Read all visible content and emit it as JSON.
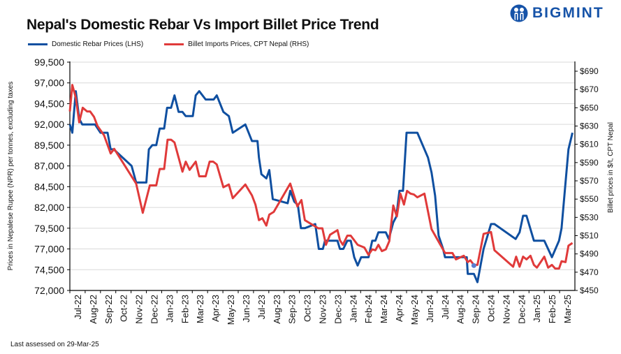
{
  "title": "Nepal's Domestic Rebar Vs Import Billet Price Trend",
  "brand": "BIGMINT",
  "footer": "Last assessed on 29-Mar-25",
  "colors": {
    "domestic": "#0f4fa0",
    "imports": "#e03a3a",
    "grid": "#d9d9d9",
    "brand": "#1653a8",
    "marker": "#5b7fd1"
  },
  "chart_data": {
    "type": "line",
    "title": "Nepal's Domestic Rebar Vs Import Billet Price Trend",
    "ylabel": "Prices in Nepalese Rupee (NPR) per tonnes, excluding taxes",
    "y2label": "Billet prices in $/t, CPT Nepal",
    "ylim": [
      72000,
      99500
    ],
    "y2lim": [
      450,
      690
    ],
    "yticks": [
      "72,000",
      "74,500",
      "77,000",
      "79,500",
      "82,000",
      "84,500",
      "87,000",
      "89,500",
      "92,000",
      "94,500",
      "97,000",
      "99,500"
    ],
    "y2ticks": [
      "$450",
      "$470",
      "$490",
      "$510",
      "$530",
      "$550",
      "$570",
      "$590",
      "$610",
      "$630",
      "$650",
      "$670",
      "$690"
    ],
    "xticks": [
      "Jul-22",
      "Aug-22",
      "Sep-22",
      "Oct-22",
      "Nov-22",
      "Dec-22",
      "Jan-23",
      "Feb-23",
      "Mar-23",
      "Apr-23",
      "May-23",
      "Jun-23",
      "Jul-23",
      "Aug-23",
      "Sep-23",
      "Oct-23",
      "Nov-23",
      "Dec-23",
      "Jan-24",
      "Feb-24",
      "Mar-24",
      "Apr-24",
      "May-24",
      "Jun-24",
      "Jul-24",
      "Aug-24",
      "Sep-24",
      "Oct-24",
      "Nov-24",
      "Dec-24",
      "Jan-25",
      "Feb-25",
      "Mar-25"
    ],
    "grid": true,
    "legend": "top-left",
    "series": [
      {
        "name": "Domestic Rebar Prices (LHS)",
        "axis": "left",
        "points": [
          [
            "2022-07-01",
            92000
          ],
          [
            "2022-07-06",
            91000
          ],
          [
            "2022-07-13",
            96000
          ],
          [
            "2022-07-20",
            92700
          ],
          [
            "2022-07-26",
            92000
          ],
          [
            "2022-08-21",
            92000
          ],
          [
            "2022-09-01",
            91000
          ],
          [
            "2022-09-15",
            91000
          ],
          [
            "2022-09-21",
            89000
          ],
          [
            "2022-09-27",
            89000
          ],
          [
            "2022-11-02",
            87000
          ],
          [
            "2022-11-11",
            85000
          ],
          [
            "2022-12-01",
            85000
          ],
          [
            "2022-12-06",
            89000
          ],
          [
            "2022-12-13",
            89500
          ],
          [
            "2022-12-21",
            89500
          ],
          [
            "2022-12-28",
            91500
          ],
          [
            "2023-01-06",
            91500
          ],
          [
            "2023-01-12",
            94000
          ],
          [
            "2023-01-20",
            94000
          ],
          [
            "2023-01-27",
            95500
          ],
          [
            "2023-02-04",
            93500
          ],
          [
            "2023-02-11",
            93500
          ],
          [
            "2023-02-17",
            93000
          ],
          [
            "2023-03-02",
            93000
          ],
          [
            "2023-03-08",
            95500
          ],
          [
            "2023-03-15",
            96000
          ],
          [
            "2023-03-28",
            95000
          ],
          [
            "2023-04-13",
            95000
          ],
          [
            "2023-04-19",
            95500
          ],
          [
            "2023-05-02",
            93500
          ],
          [
            "2023-05-13",
            93000
          ],
          [
            "2023-05-21",
            91000
          ],
          [
            "2023-06-15",
            92000
          ],
          [
            "2023-06-28",
            90000
          ],
          [
            "2023-07-09",
            90000
          ],
          [
            "2023-07-12",
            88000
          ],
          [
            "2023-07-17",
            86000
          ],
          [
            "2023-07-27",
            85500
          ],
          [
            "2023-08-02",
            86500
          ],
          [
            "2023-08-09",
            83000
          ],
          [
            "2023-09-08",
            82500
          ],
          [
            "2023-09-13",
            84000
          ],
          [
            "2023-09-21",
            82700
          ],
          [
            "2023-09-28",
            82300
          ],
          [
            "2023-10-04",
            79500
          ],
          [
            "2023-10-12",
            79500
          ],
          [
            "2023-11-02",
            80000
          ],
          [
            "2023-11-09",
            77000
          ],
          [
            "2023-11-17",
            77000
          ],
          [
            "2023-11-21",
            78000
          ],
          [
            "2023-12-16",
            78000
          ],
          [
            "2023-12-21",
            77000
          ],
          [
            "2023-12-28",
            77000
          ],
          [
            "2024-01-05",
            78000
          ],
          [
            "2024-01-12",
            78000
          ],
          [
            "2024-01-19",
            76000
          ],
          [
            "2024-01-26",
            75000
          ],
          [
            "2024-02-02",
            76000
          ],
          [
            "2024-02-16",
            76000
          ],
          [
            "2024-02-23",
            78000
          ],
          [
            "2024-02-29",
            78000
          ],
          [
            "2024-03-06",
            79000
          ],
          [
            "2024-03-21",
            79000
          ],
          [
            "2024-03-27",
            78200
          ],
          [
            "2024-04-05",
            80200
          ],
          [
            "2024-04-11",
            80900
          ],
          [
            "2024-04-17",
            84000
          ],
          [
            "2024-04-24",
            84000
          ],
          [
            "2024-05-01",
            91000
          ],
          [
            "2024-05-23",
            91000
          ],
          [
            "2024-06-13",
            88000
          ],
          [
            "2024-06-20",
            86200
          ],
          [
            "2024-06-27",
            83400
          ],
          [
            "2024-07-04",
            78600
          ],
          [
            "2024-07-13",
            77000
          ],
          [
            "2024-07-17",
            76000
          ],
          [
            "2024-08-30",
            76000
          ],
          [
            "2024-09-01",
            74000
          ],
          [
            "2024-09-13",
            74000
          ],
          [
            "2024-09-20",
            73000
          ],
          [
            "2024-10-02",
            77000
          ],
          [
            "2024-10-17",
            80000
          ],
          [
            "2024-10-24",
            80000
          ],
          [
            "2024-12-05",
            78200
          ],
          [
            "2024-12-13",
            79000
          ],
          [
            "2024-12-20",
            81000
          ],
          [
            "2024-12-27",
            81000
          ],
          [
            "2025-01-11",
            78000
          ],
          [
            "2025-02-01",
            78000
          ],
          [
            "2025-02-15",
            76000
          ],
          [
            "2025-02-28",
            78000
          ],
          [
            "2025-03-05",
            79500
          ],
          [
            "2025-03-13",
            85000
          ],
          [
            "2025-03-19",
            89000
          ],
          [
            "2025-03-27",
            91000
          ]
        ]
      },
      {
        "name": "Billet Imports Prices, CPT Nepal (RHS)",
        "axis": "right",
        "points": [
          [
            "2022-07-01",
            646
          ],
          [
            "2022-07-06",
            675
          ],
          [
            "2022-07-13",
            661
          ],
          [
            "2022-07-20",
            634
          ],
          [
            "2022-07-27",
            650
          ],
          [
            "2022-08-05",
            646
          ],
          [
            "2022-08-11",
            646
          ],
          [
            "2022-08-19",
            640
          ],
          [
            "2022-08-26",
            630
          ],
          [
            "2022-09-08",
            620
          ],
          [
            "2022-09-21",
            600
          ],
          [
            "2022-09-28",
            605
          ],
          [
            "2022-11-11",
            567
          ],
          [
            "2022-11-24",
            535
          ],
          [
            "2022-12-08",
            565
          ],
          [
            "2022-12-21",
            565
          ],
          [
            "2022-12-28",
            583
          ],
          [
            "2023-01-06",
            583
          ],
          [
            "2023-01-13",
            615
          ],
          [
            "2023-01-20",
            615
          ],
          [
            "2023-01-27",
            612
          ],
          [
            "2023-02-11",
            580
          ],
          [
            "2023-02-17",
            591
          ],
          [
            "2023-02-24",
            582
          ],
          [
            "2023-03-08",
            591
          ],
          [
            "2023-03-15",
            575
          ],
          [
            "2023-03-28",
            575
          ],
          [
            "2023-04-05",
            591
          ],
          [
            "2023-04-12",
            591
          ],
          [
            "2023-04-19",
            588
          ],
          [
            "2023-05-02",
            563
          ],
          [
            "2023-05-13",
            566
          ],
          [
            "2023-05-21",
            551
          ],
          [
            "2023-06-15",
            566
          ],
          [
            "2023-06-28",
            554
          ],
          [
            "2023-07-05",
            544
          ],
          [
            "2023-07-12",
            527
          ],
          [
            "2023-07-19",
            529
          ],
          [
            "2023-07-27",
            521
          ],
          [
            "2023-08-02",
            533
          ],
          [
            "2023-08-11",
            536
          ],
          [
            "2023-09-13",
            567
          ],
          [
            "2023-09-27",
            542
          ],
          [
            "2023-10-05",
            549
          ],
          [
            "2023-10-12",
            527
          ],
          [
            "2023-11-08",
            518
          ],
          [
            "2023-11-16",
            518
          ],
          [
            "2023-11-23",
            500
          ],
          [
            "2023-12-01",
            511
          ],
          [
            "2023-12-16",
            516
          ],
          [
            "2023-12-21",
            505
          ],
          [
            "2023-12-27",
            500
          ],
          [
            "2024-01-05",
            510
          ],
          [
            "2024-01-12",
            510
          ],
          [
            "2024-01-26",
            500
          ],
          [
            "2024-02-08",
            497
          ],
          [
            "2024-02-16",
            489
          ],
          [
            "2024-02-23",
            495
          ],
          [
            "2024-02-29",
            494
          ],
          [
            "2024-03-06",
            500
          ],
          [
            "2024-03-13",
            493
          ],
          [
            "2024-03-21",
            495
          ],
          [
            "2024-03-28",
            504
          ],
          [
            "2024-04-05",
            543
          ],
          [
            "2024-04-12",
            531
          ],
          [
            "2024-04-19",
            556
          ],
          [
            "2024-04-26",
            544
          ],
          [
            "2024-05-02",
            559
          ],
          [
            "2024-05-09",
            556
          ],
          [
            "2024-05-16",
            555
          ],
          [
            "2024-05-23",
            552
          ],
          [
            "2024-06-06",
            556
          ],
          [
            "2024-06-20",
            517
          ],
          [
            "2024-07-17",
            491
          ],
          [
            "2024-08-01",
            491
          ],
          [
            "2024-08-08",
            484
          ],
          [
            "2024-08-24",
            488
          ],
          [
            "2024-09-01",
            481
          ],
          [
            "2024-09-06",
            483
          ],
          [
            "2024-09-13",
            478
          ],
          [
            "2024-09-20",
            478
          ],
          [
            "2024-10-02",
            512
          ],
          [
            "2024-10-17",
            514
          ],
          [
            "2024-10-24",
            494
          ],
          [
            "2024-11-30",
            476
          ],
          [
            "2024-12-06",
            487
          ],
          [
            "2024-12-13",
            476
          ],
          [
            "2024-12-20",
            487
          ],
          [
            "2024-12-27",
            484
          ],
          [
            "2025-01-04",
            488
          ],
          [
            "2025-01-11",
            478
          ],
          [
            "2025-01-17",
            475
          ],
          [
            "2025-02-01",
            487
          ],
          [
            "2025-02-08",
            475
          ],
          [
            "2025-02-15",
            478
          ],
          [
            "2025-02-21",
            474
          ],
          [
            "2025-02-28",
            474
          ],
          [
            "2025-03-05",
            482
          ],
          [
            "2025-03-13",
            481
          ],
          [
            "2025-03-19",
            499
          ],
          [
            "2025-03-27",
            502
          ]
        ]
      }
    ],
    "markers": [
      {
        "x": "2024-09-13",
        "y": 75000,
        "axis": "left"
      }
    ]
  }
}
